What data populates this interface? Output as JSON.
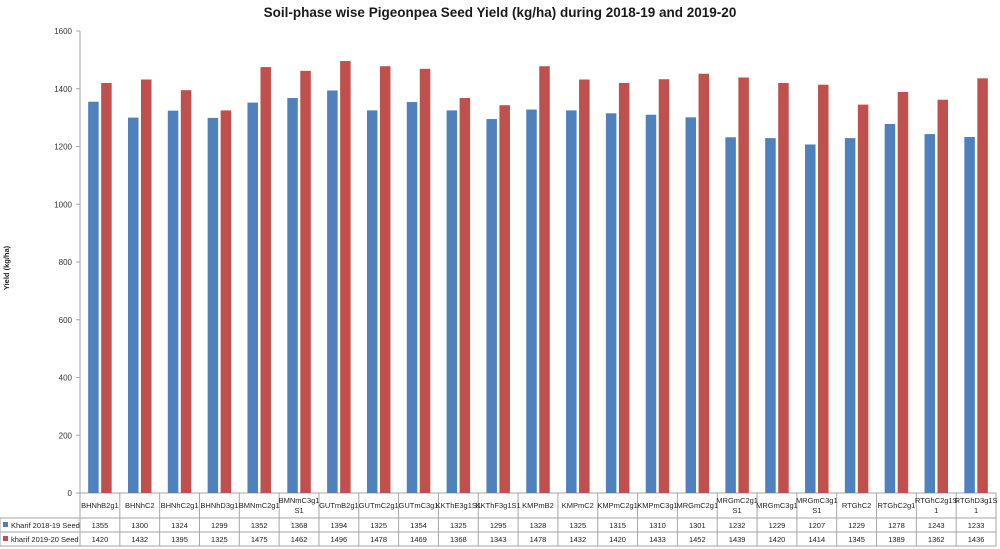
{
  "chart_data": {
    "type": "bar",
    "title": "Soil-phase wise Pigeonpea Seed Yield (kg/ha) during  2018-19 and 2019-20",
    "xlabel": "",
    "ylabel": "Yield (kg/ha)",
    "ylim": [
      0,
      1600
    ],
    "yticks": [
      0,
      200,
      400,
      600,
      800,
      1000,
      1200,
      1400,
      1600
    ],
    "grid": false,
    "legend": "data-table-left",
    "categories": [
      [
        "BHNhB2g1"
      ],
      [
        "BHNhC2"
      ],
      [
        "BHNhC2g1"
      ],
      [
        "BHNhD3g1"
      ],
      [
        "BMNmC2g1"
      ],
      [
        "BMNmC3g1",
        "S1"
      ],
      [
        "GUTmB2g1"
      ],
      [
        "GUTmC2g1"
      ],
      [
        "GUTmC3g1"
      ],
      [
        "KKThE3g1S1"
      ],
      [
        "KKThF3g1S1"
      ],
      [
        "KMPmB2"
      ],
      [
        "KMPmC2"
      ],
      [
        "KMPmC2g1"
      ],
      [
        "KMPmC3g1"
      ],
      [
        "MRGmC2g1"
      ],
      [
        "MRGmC2g1",
        "S1"
      ],
      [
        "MRGmC3g1"
      ],
      [
        "MRGmC3g1",
        "S1"
      ],
      [
        "RTGhC2"
      ],
      [
        "RTGhC2g1"
      ],
      [
        "RTGhC2g1S",
        "1"
      ],
      [
        "RTGhD3g1S",
        "1"
      ]
    ],
    "series": [
      {
        "name": "Kharif 2018-19 Seed",
        "color": "#4f81bd",
        "values": [
          1355,
          1300,
          1324,
          1299,
          1352,
          1368,
          1394,
          1325,
          1354,
          1325,
          1295,
          1328,
          1325,
          1315,
          1310,
          1301,
          1232,
          1229,
          1207,
          1229,
          1278,
          1243,
          1233
        ]
      },
      {
        "name": "kharif 2019-20 Seed",
        "color": "#c0504d",
        "values": [
          1420,
          1432,
          1395,
          1325,
          1475,
          1462,
          1496,
          1478,
          1469,
          1368,
          1343,
          1478,
          1432,
          1420,
          1433,
          1452,
          1439,
          1420,
          1414,
          1345,
          1389,
          1362,
          1436
        ]
      }
    ]
  }
}
